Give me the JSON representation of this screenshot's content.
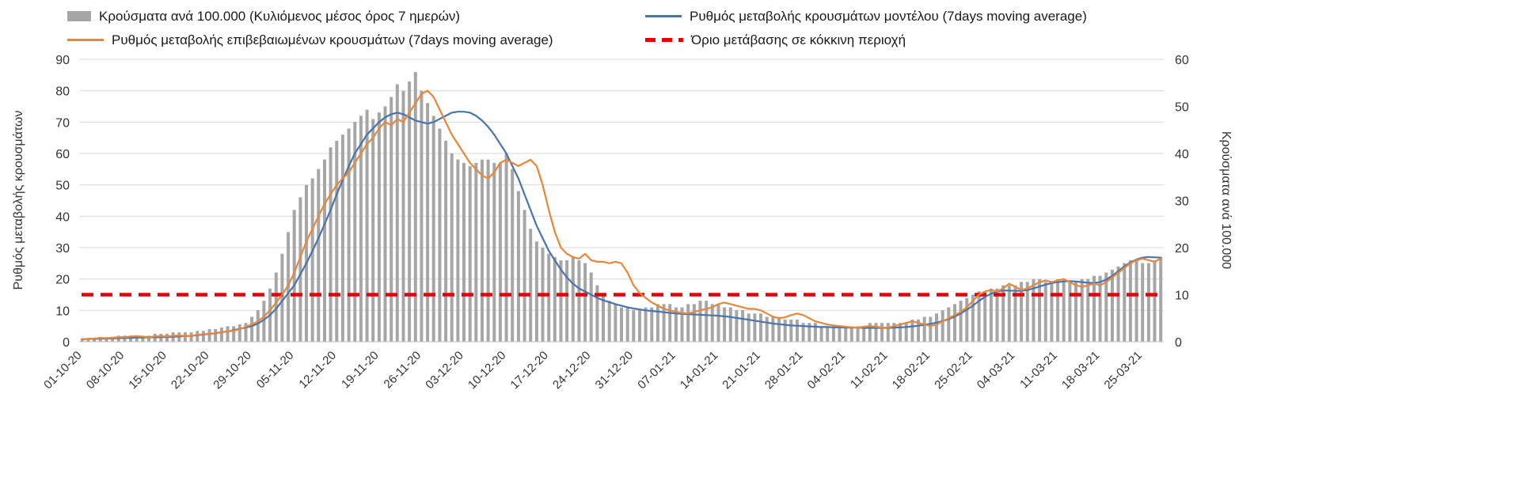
{
  "page": {
    "background": "#ffffff"
  },
  "chart_data": {
    "type": "bar",
    "subtype": "combo-bar-line",
    "grid_color": "#d9d9d9",
    "axis_line_color": "#bfbfbf",
    "legend": [
      {
        "label": "Κρούσματα ανά 100.000 (Κυλιόμενος μέσος όρος 7 ημερών)",
        "marker": "bar",
        "color": "#a6a6a6"
      },
      {
        "label": "Ρυθμός μεταβολής κρουσμάτων μοντέλου (7days moving average)",
        "marker": "line",
        "color": "#4a74ae"
      },
      {
        "label": "Ρυθμός μεταβολής επιβεβαιωμένων κρουσμάτων (7days moving average)",
        "marker": "line",
        "color": "#e8873a"
      },
      {
        "label": "Όριο μετάβασης σε κόκκινη περιοχή",
        "marker": "dashed-line",
        "color": "#e60000"
      }
    ],
    "left_axis": {
      "title": "Ρυθμός μεταβολής κρουσμάτων",
      "min": 0,
      "max": 90,
      "step": 10
    },
    "right_axis": {
      "title": "Κρούσματα ανά 100.000",
      "min": 0,
      "max": 60,
      "step": 10
    },
    "x_tick_interval": 7,
    "x_tick_labels": [
      "01-10-20",
      "08-10-20",
      "15-10-20",
      "22-10-20",
      "29-10-20",
      "05-11-20",
      "12-11-20",
      "19-11-20",
      "26-11-20",
      "03-12-20",
      "10-12-20",
      "17-12-20",
      "24-12-20",
      "31-12-20",
      "07-01-21",
      "14-01-21",
      "21-01-21",
      "28-01-21",
      "04-02-21",
      "11-02-21",
      "18-02-21",
      "25-02-21",
      "04-03-21",
      "11-03-21",
      "18-03-21",
      "25-03-21"
    ],
    "threshold": {
      "left_value": 15,
      "color": "#e60000"
    },
    "series": [
      {
        "name": "Κρούσματα ανά 100.000 (Κυλιόμενος μέσος όρος 7 ημερών)",
        "type": "bar",
        "axis": "right",
        "color": "#a6a6a6",
        "values": [
          0.7,
          0.7,
          0.7,
          1,
          1,
          1,
          1.3,
          1.3,
          1.3,
          1.3,
          1.3,
          1.3,
          1.7,
          1.7,
          1.7,
          2,
          2,
          2,
          2,
          2.3,
          2.3,
          2.7,
          2.7,
          3,
          3.3,
          3.3,
          3.7,
          4,
          5.3,
          6.7,
          8.7,
          11.3,
          14.7,
          18.7,
          23.3,
          28,
          30.7,
          33.3,
          34.7,
          36.7,
          38.7,
          41.3,
          42.7,
          44,
          45.3,
          46.7,
          48,
          49.3,
          47.3,
          48.7,
          50,
          52,
          54.7,
          53.3,
          55.3,
          57.3,
          53.3,
          50.7,
          48,
          45.3,
          42.7,
          40,
          38.7,
          38,
          37.3,
          38,
          38.7,
          38.7,
          38,
          38,
          40,
          36.7,
          32,
          28,
          24,
          21.3,
          20,
          18.7,
          18,
          17.3,
          17.3,
          18,
          17.3,
          16.7,
          14.7,
          12,
          10,
          8.7,
          8,
          7.3,
          7.3,
          6.7,
          6.7,
          7.3,
          7.3,
          8,
          8,
          8,
          7.3,
          7.3,
          8,
          8,
          8.7,
          8.7,
          8,
          8,
          7.3,
          7.3,
          6.7,
          6.7,
          6,
          6,
          6,
          5.3,
          5.3,
          5.3,
          4.7,
          4.7,
          4.7,
          4,
          4,
          4,
          3.3,
          3.3,
          3.3,
          3.3,
          3.3,
          3.3,
          3.3,
          3.3,
          4,
          4,
          4,
          4,
          4,
          4,
          4,
          4.7,
          4.7,
          5.3,
          5.3,
          6,
          6.7,
          7.3,
          8,
          8.7,
          9.3,
          10,
          10.7,
          10.7,
          11.3,
          11.3,
          12,
          12,
          12,
          12.7,
          12.7,
          13.3,
          13.3,
          12.7,
          12.7,
          13.3,
          13.3,
          12.7,
          12.7,
          13.3,
          13.3,
          14,
          14,
          14.7,
          15.3,
          16,
          16.7,
          17.3,
          17.3,
          16.7,
          16.7,
          17.3,
          18
        ]
      },
      {
        "name": "Ρυθμός μεταβολής κρουσμάτων μοντέλου (7days moving average)",
        "type": "line",
        "axis": "left",
        "color": "#4a74ae",
        "values": [
          0.8,
          0.9,
          0.9,
          1,
          1,
          1.1,
          1.1,
          1.2,
          1.2,
          1.3,
          1.3,
          1.4,
          1.4,
          1.5,
          1.5,
          1.6,
          1.7,
          1.8,
          1.9,
          2.1,
          2.3,
          2.5,
          2.7,
          3,
          3.3,
          3.7,
          4.1,
          4.5,
          5,
          5.8,
          7,
          8.5,
          10.5,
          13,
          15.5,
          18,
          21.5,
          25,
          29,
          33,
          37.5,
          42,
          47,
          51.5,
          56,
          60,
          63,
          66,
          68,
          70,
          71.5,
          72.5,
          73,
          72.5,
          71.5,
          70.5,
          70,
          69.5,
          70,
          71,
          72,
          73,
          73.3,
          73.3,
          73,
          72,
          70.5,
          68.5,
          66,
          63,
          60,
          56,
          52,
          47,
          42,
          37,
          33,
          29,
          26,
          23,
          20.5,
          18.5,
          17,
          16,
          15,
          14,
          13.2,
          12.6,
          12,
          11.5,
          11,
          10.6,
          10.3,
          10,
          9.8,
          9.6,
          9.4,
          9.2,
          9,
          8.9,
          8.8,
          8.7,
          8.6,
          8.5,
          8.4,
          8.3,
          8.1,
          7.9,
          7.6,
          7.3,
          7,
          6.7,
          6.4,
          6.1,
          5.8,
          5.6,
          5.4,
          5.2,
          5.1,
          5,
          4.9,
          4.8,
          4.7,
          4.7,
          4.6,
          4.6,
          4.5,
          4.5,
          4.5,
          4.4,
          4.4,
          4.4,
          4.4,
          4.4,
          4.5,
          4.6,
          4.7,
          4.9,
          5.1,
          5.4,
          5.7,
          6.1,
          6.6,
          7.2,
          8,
          9,
          10.2,
          11.5,
          13,
          14.3,
          15.3,
          16,
          16.3,
          16.3,
          16.2,
          16.2,
          16.5,
          17,
          17.6,
          18.2,
          18.7,
          19,
          19.2,
          19.3,
          19.2,
          19,
          18.8,
          18.7,
          19,
          19.8,
          21,
          22.5,
          24,
          25.3,
          26.2,
          26.8,
          27,
          26.9,
          26.8
        ]
      },
      {
        "name": "Ρυθμός μεταβολής επιβεβαιωμένων κρουσμάτων (7days moving average)",
        "type": "line",
        "axis": "left",
        "color": "#e8873a",
        "values": [
          0.8,
          0.9,
          1,
          1.2,
          1.1,
          1.3,
          1.4,
          1.5,
          1.7,
          1.8,
          1.6,
          1.5,
          1.7,
          1.8,
          1.7,
          1.9,
          2,
          1.8,
          1.9,
          2.2,
          2.4,
          2.5,
          2.8,
          3,
          3.3,
          3.5,
          4,
          4.8,
          5.5,
          6.5,
          8,
          10,
          12.5,
          15,
          18,
          22,
          27,
          32,
          36,
          40,
          44,
          47,
          50,
          52,
          54,
          57,
          60,
          63,
          65,
          68,
          70,
          69,
          71,
          70,
          73,
          76,
          79,
          80,
          78,
          74,
          70,
          66,
          63,
          60,
          57,
          55,
          53,
          52,
          54,
          57,
          58,
          57,
          56,
          57,
          58,
          56,
          50,
          42,
          35,
          30,
          28,
          27,
          26.5,
          28,
          26,
          25.5,
          25.5,
          25,
          25.5,
          25,
          22,
          18,
          15.5,
          14,
          12.5,
          11.5,
          10.5,
          10,
          9.5,
          9.2,
          9,
          9.5,
          10,
          10.5,
          11,
          12,
          12.5,
          12,
          11.5,
          11,
          10.5,
          10.5,
          10,
          9,
          8,
          7.5,
          7.8,
          8.5,
          9,
          8.5,
          7.5,
          6.5,
          6,
          5.5,
          5.2,
          5,
          4.8,
          4.6,
          4.5,
          4.8,
          5,
          4.8,
          4.5,
          4.5,
          5,
          5.5,
          6,
          6.5,
          6,
          5.5,
          5,
          5.5,
          6.5,
          7.5,
          8.5,
          9.5,
          11,
          13,
          15,
          16,
          16.5,
          16,
          17,
          18.5,
          17.5,
          16.5,
          17,
          18,
          19,
          19.5,
          19,
          19.5,
          20,
          19,
          18,
          17.5,
          18,
          18.5,
          18,
          19,
          20.5,
          22,
          23.5,
          25,
          26,
          26.5,
          26,
          25.5,
          26.5
        ]
      }
    ]
  }
}
